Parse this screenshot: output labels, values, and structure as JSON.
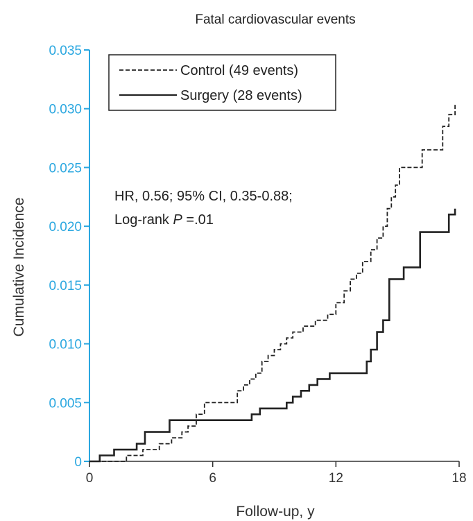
{
  "chart_data": {
    "type": "line",
    "subtype": "step",
    "title": "Fatal cardiovascular events",
    "xlabel": "Follow-up, y",
    "ylabel": "Cumulative Incidence",
    "xlim": [
      0,
      18
    ],
    "ylim": [
      0,
      0.035
    ],
    "x_ticks": [
      "0",
      "6",
      "12",
      "18"
    ],
    "x_tick_values": [
      0,
      6,
      12,
      18
    ],
    "y_ticks": [
      "0",
      "0.005",
      "0.010",
      "0.015",
      "0.020",
      "0.025",
      "0.030",
      "0.035"
    ],
    "y_tick_values": [
      0,
      0.005,
      0.01,
      0.015,
      0.02,
      0.025,
      0.03,
      0.035
    ],
    "y_axis_color": "#2aa7e0",
    "grid": false,
    "legend_position": "top-left",
    "annotation": {
      "line1": "HR, 0.56; 95% CI, 0.35-0.88;",
      "line2_prefix": "Log-rank ",
      "line2_italic": "P",
      "line2_suffix": " =.01"
    },
    "series": [
      {
        "name": "Control (49 events)",
        "style": "dashed",
        "color": "#222222",
        "x": [
          0,
          1.8,
          2.6,
          3.4,
          4.0,
          4.5,
          4.8,
          5.2,
          5.6,
          7.2,
          7.5,
          7.8,
          8.1,
          8.4,
          8.7,
          9.0,
          9.3,
          9.6,
          9.9,
          10.4,
          11.0,
          11.6,
          12.0,
          12.4,
          12.7,
          13.0,
          13.3,
          13.7,
          14.0,
          14.3,
          14.5,
          14.7,
          14.9,
          15.1,
          16.2,
          17.2,
          17.5,
          17.8
        ],
        "y": [
          0,
          0.0005,
          0.001,
          0.0015,
          0.002,
          0.0025,
          0.003,
          0.004,
          0.005,
          0.006,
          0.0065,
          0.007,
          0.0075,
          0.0085,
          0.009,
          0.0095,
          0.01,
          0.0105,
          0.011,
          0.0115,
          0.012,
          0.0125,
          0.0135,
          0.0145,
          0.0155,
          0.016,
          0.017,
          0.018,
          0.019,
          0.02,
          0.0215,
          0.0225,
          0.0235,
          0.025,
          0.0265,
          0.0285,
          0.0295,
          0.0305
        ]
      },
      {
        "name": "Surgery (28 events)",
        "style": "solid",
        "color": "#222222",
        "x": [
          0,
          0.5,
          1.2,
          2.3,
          2.7,
          3.9,
          7.9,
          8.3,
          9.6,
          9.9,
          10.3,
          10.7,
          11.1,
          11.7,
          13.5,
          13.7,
          14.0,
          14.3,
          14.6,
          15.3,
          16.1,
          17.5,
          17.8
        ],
        "y": [
          0,
          0.0005,
          0.001,
          0.0015,
          0.0025,
          0.0035,
          0.004,
          0.0045,
          0.005,
          0.0055,
          0.006,
          0.0065,
          0.007,
          0.0075,
          0.0085,
          0.0095,
          0.011,
          0.012,
          0.0155,
          0.0165,
          0.0195,
          0.021,
          0.0215
        ]
      }
    ]
  }
}
